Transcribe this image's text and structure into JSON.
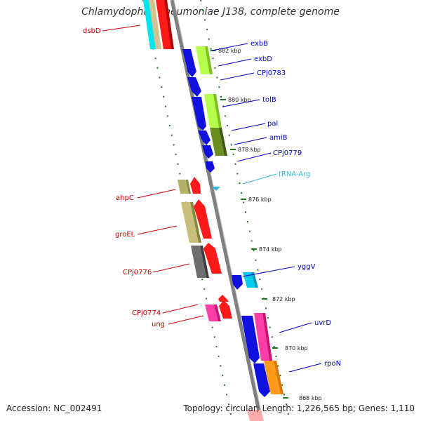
{
  "title": "Chlamydophila pneumoniae J138, complete genome",
  "footer": {
    "accession": "Accession: NC_002491",
    "summary": "Topology: circular; Length: 1,226,565 bp; Genes: 1,110"
  },
  "scale_labels": [
    "882 kbp",
    "880 kbp",
    "878 kbp",
    "876 kbp",
    "874 kbp",
    "872 kbp",
    "870 kbp",
    "868 kbp"
  ],
  "forward_gene_labels": [
    "exbB",
    "exbD",
    "CPj0783",
    "tolB",
    "pal",
    "amiB",
    "CPj0779",
    "tRNA-Arg",
    "yggV",
    "uvrD",
    "rpoN"
  ],
  "reverse_gene_labels": [
    "dsbD",
    "ahpC",
    "groEL",
    "CPj0776",
    "CPj0774",
    "ung"
  ],
  "colors": {
    "forward_label": "#0000cc",
    "reverse_label": "#cc0000",
    "trna_label": "#33bbdd",
    "backbone": "#808080",
    "ticks": "#1a7a1a"
  }
}
